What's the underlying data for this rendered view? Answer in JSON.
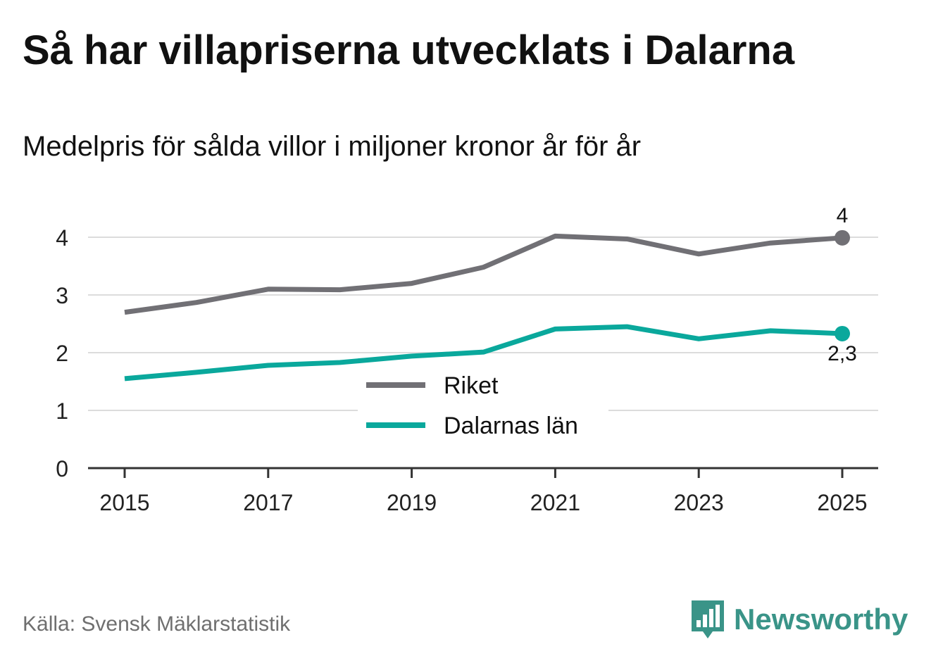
{
  "title": "Så har villapriserna utvecklats i Dalarna",
  "subtitle": "Medelpris för sålda villor i miljoner kronor år för år",
  "source": "Källa: Svensk Mäklarstatistik",
  "brand": {
    "name": "Newsworthy",
    "icon": "newsworthy-logo-icon",
    "color": "#3a9488"
  },
  "chart_data": {
    "type": "line",
    "x": [
      2015,
      2016,
      2017,
      2018,
      2019,
      2020,
      2021,
      2022,
      2023,
      2024,
      2025
    ],
    "xticks": [
      "2015",
      "2017",
      "2019",
      "2021",
      "2023",
      "2025"
    ],
    "xlim": [
      2015,
      2025
    ],
    "ylim": [
      0,
      4.4
    ],
    "yticks": [
      "0",
      "1",
      "2",
      "3",
      "4"
    ],
    "grid": true,
    "legend_position": "center",
    "series": [
      {
        "name": "Riket",
        "color": "#717075",
        "values": [
          2.7,
          2.87,
          3.1,
          3.09,
          3.2,
          3.48,
          4.02,
          3.97,
          3.71,
          3.9,
          3.99
        ],
        "end_label": "4"
      },
      {
        "name": "Dalarnas län",
        "color": "#0aa89c",
        "values": [
          1.55,
          1.66,
          1.78,
          1.83,
          1.94,
          2.01,
          2.41,
          2.45,
          2.24,
          2.38,
          2.33
        ],
        "end_label": "2,3"
      }
    ]
  }
}
